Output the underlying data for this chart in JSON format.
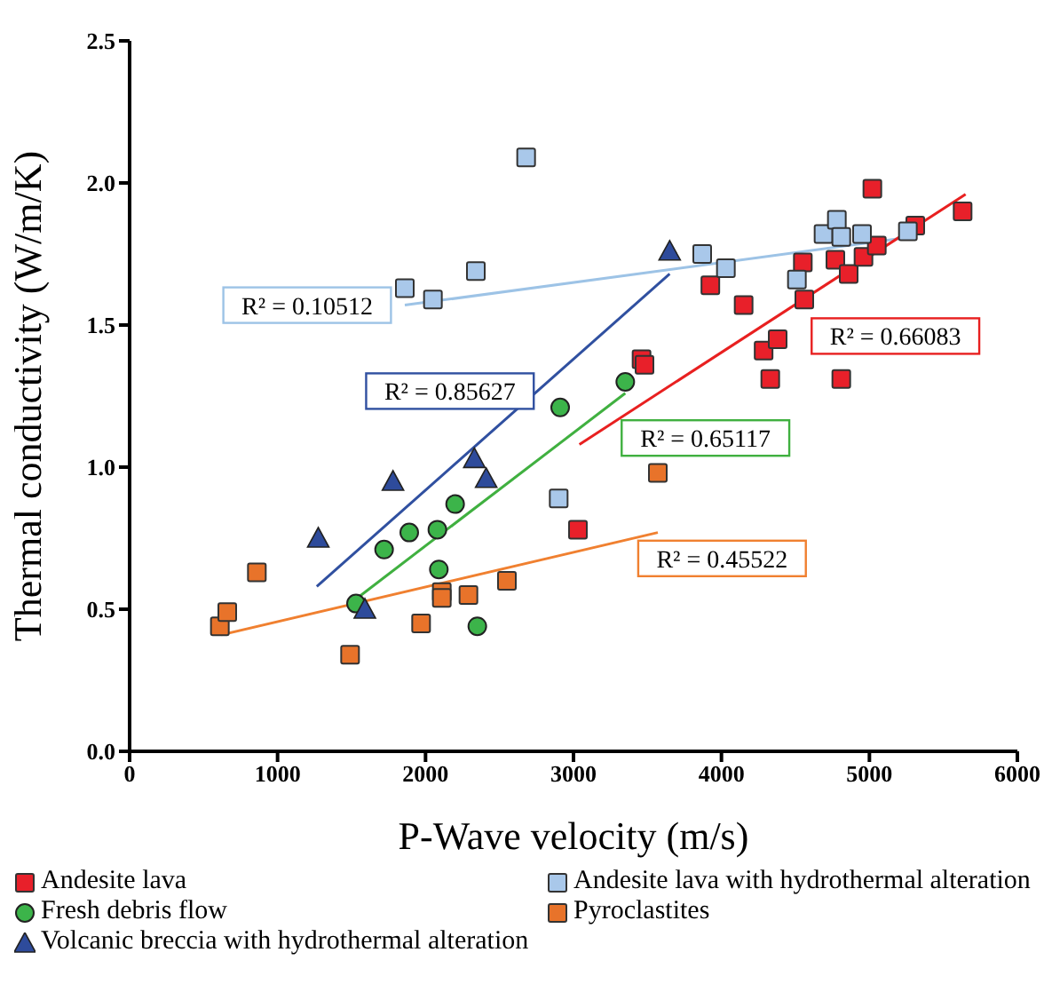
{
  "chart_data": {
    "type": "scatter",
    "xlabel": "P-Wave velocity (m/s)",
    "ylabel": "Thermal conductivity (W/m/K)",
    "xlim": [
      0,
      6000
    ],
    "xticks": [
      0,
      1000,
      2000,
      3000,
      4000,
      5000,
      6000
    ],
    "ylim": [
      0,
      2.5
    ],
    "yticks": [
      {
        "value": 0,
        "label": "0.0"
      },
      {
        "value": 0.5,
        "label": "0.5"
      },
      {
        "value": 1,
        "label": "1.0"
      },
      {
        "value": 1.5,
        "label": "1.5"
      },
      {
        "value": 2,
        "label": "2.0"
      },
      {
        "value": 2.5,
        "label": "2.5"
      }
    ],
    "grid": false,
    "legend": "bottom",
    "series": [
      {
        "name": "Andesite lava",
        "color": "#e8202a",
        "marker": "square",
        "x": [
          3460,
          3480,
          3030,
          3925,
          4150,
          4285,
          4380,
          4330,
          4550,
          4560,
          4810,
          4770,
          4860,
          4960,
          5050,
          5020,
          5310,
          5630
        ],
        "values": [
          1.38,
          1.36,
          0.78,
          1.64,
          1.57,
          1.41,
          1.45,
          1.31,
          1.72,
          1.59,
          1.31,
          1.73,
          1.68,
          1.74,
          1.78,
          1.98,
          1.85,
          1.9
        ]
      },
      {
        "name": "Andesite lava with hydrothermal alteration",
        "color": "#a9c8ea",
        "marker": "square",
        "x": [
          1860,
          2050,
          2340,
          2680,
          2900,
          3870,
          4030,
          4510,
          4690,
          4780,
          4810,
          4950,
          5260
        ],
        "values": [
          1.63,
          1.59,
          1.69,
          2.09,
          0.89,
          1.75,
          1.7,
          1.66,
          1.82,
          1.87,
          1.81,
          1.82,
          1.83
        ]
      },
      {
        "name": "Fresh debris flow",
        "color": "#3cb44a",
        "marker": "circle",
        "x": [
          1530,
          1720,
          1890,
          2080,
          2090,
          2200,
          2350,
          2910,
          3350
        ],
        "values": [
          0.52,
          0.71,
          0.77,
          0.78,
          0.64,
          0.87,
          0.44,
          1.21,
          1.3
        ]
      },
      {
        "name": "Pyroclastites",
        "color": "#e8732a",
        "marker": "square",
        "x": [
          610,
          660,
          860,
          1490,
          1970,
          2110,
          2110,
          2290,
          2550,
          3570
        ],
        "values": [
          0.44,
          0.49,
          0.63,
          0.34,
          0.45,
          0.56,
          0.54,
          0.55,
          0.6,
          0.98
        ]
      },
      {
        "name": "Volcanic breccia with hydrothermal alteration",
        "color": "#2e4b9b",
        "marker": "triangle",
        "x": [
          1275,
          1780,
          1590,
          2330,
          2410,
          3650
        ],
        "values": [
          0.75,
          0.95,
          0.5,
          1.03,
          0.96,
          1.76
        ]
      },
      {
        "type": "line",
        "color": "#9dc3e6",
        "x": [
          1860,
          5290
        ],
        "values": [
          1.57,
          1.81
        ]
      },
      {
        "type": "line",
        "color": "#3050a0",
        "x": [
          1265,
          3650
        ],
        "values": [
          0.58,
          1.68
        ]
      },
      {
        "type": "line",
        "color": "#40b040",
        "x": [
          1540,
          3350
        ],
        "values": [
          0.54,
          1.26
        ]
      },
      {
        "type": "line",
        "color": "#f08030",
        "x": [
          620,
          3570
        ],
        "values": [
          0.41,
          0.77
        ]
      },
      {
        "type": "line",
        "color": "#e82020",
        "x": [
          3040,
          5650
        ],
        "values": [
          1.08,
          1.96
        ]
      }
    ],
    "annotations": [
      "R² = 0.10512",
      "R² = 0.85627",
      "R² = 0.65117",
      "R² = 0.45522",
      "R² = 0.66083"
    ]
  }
}
